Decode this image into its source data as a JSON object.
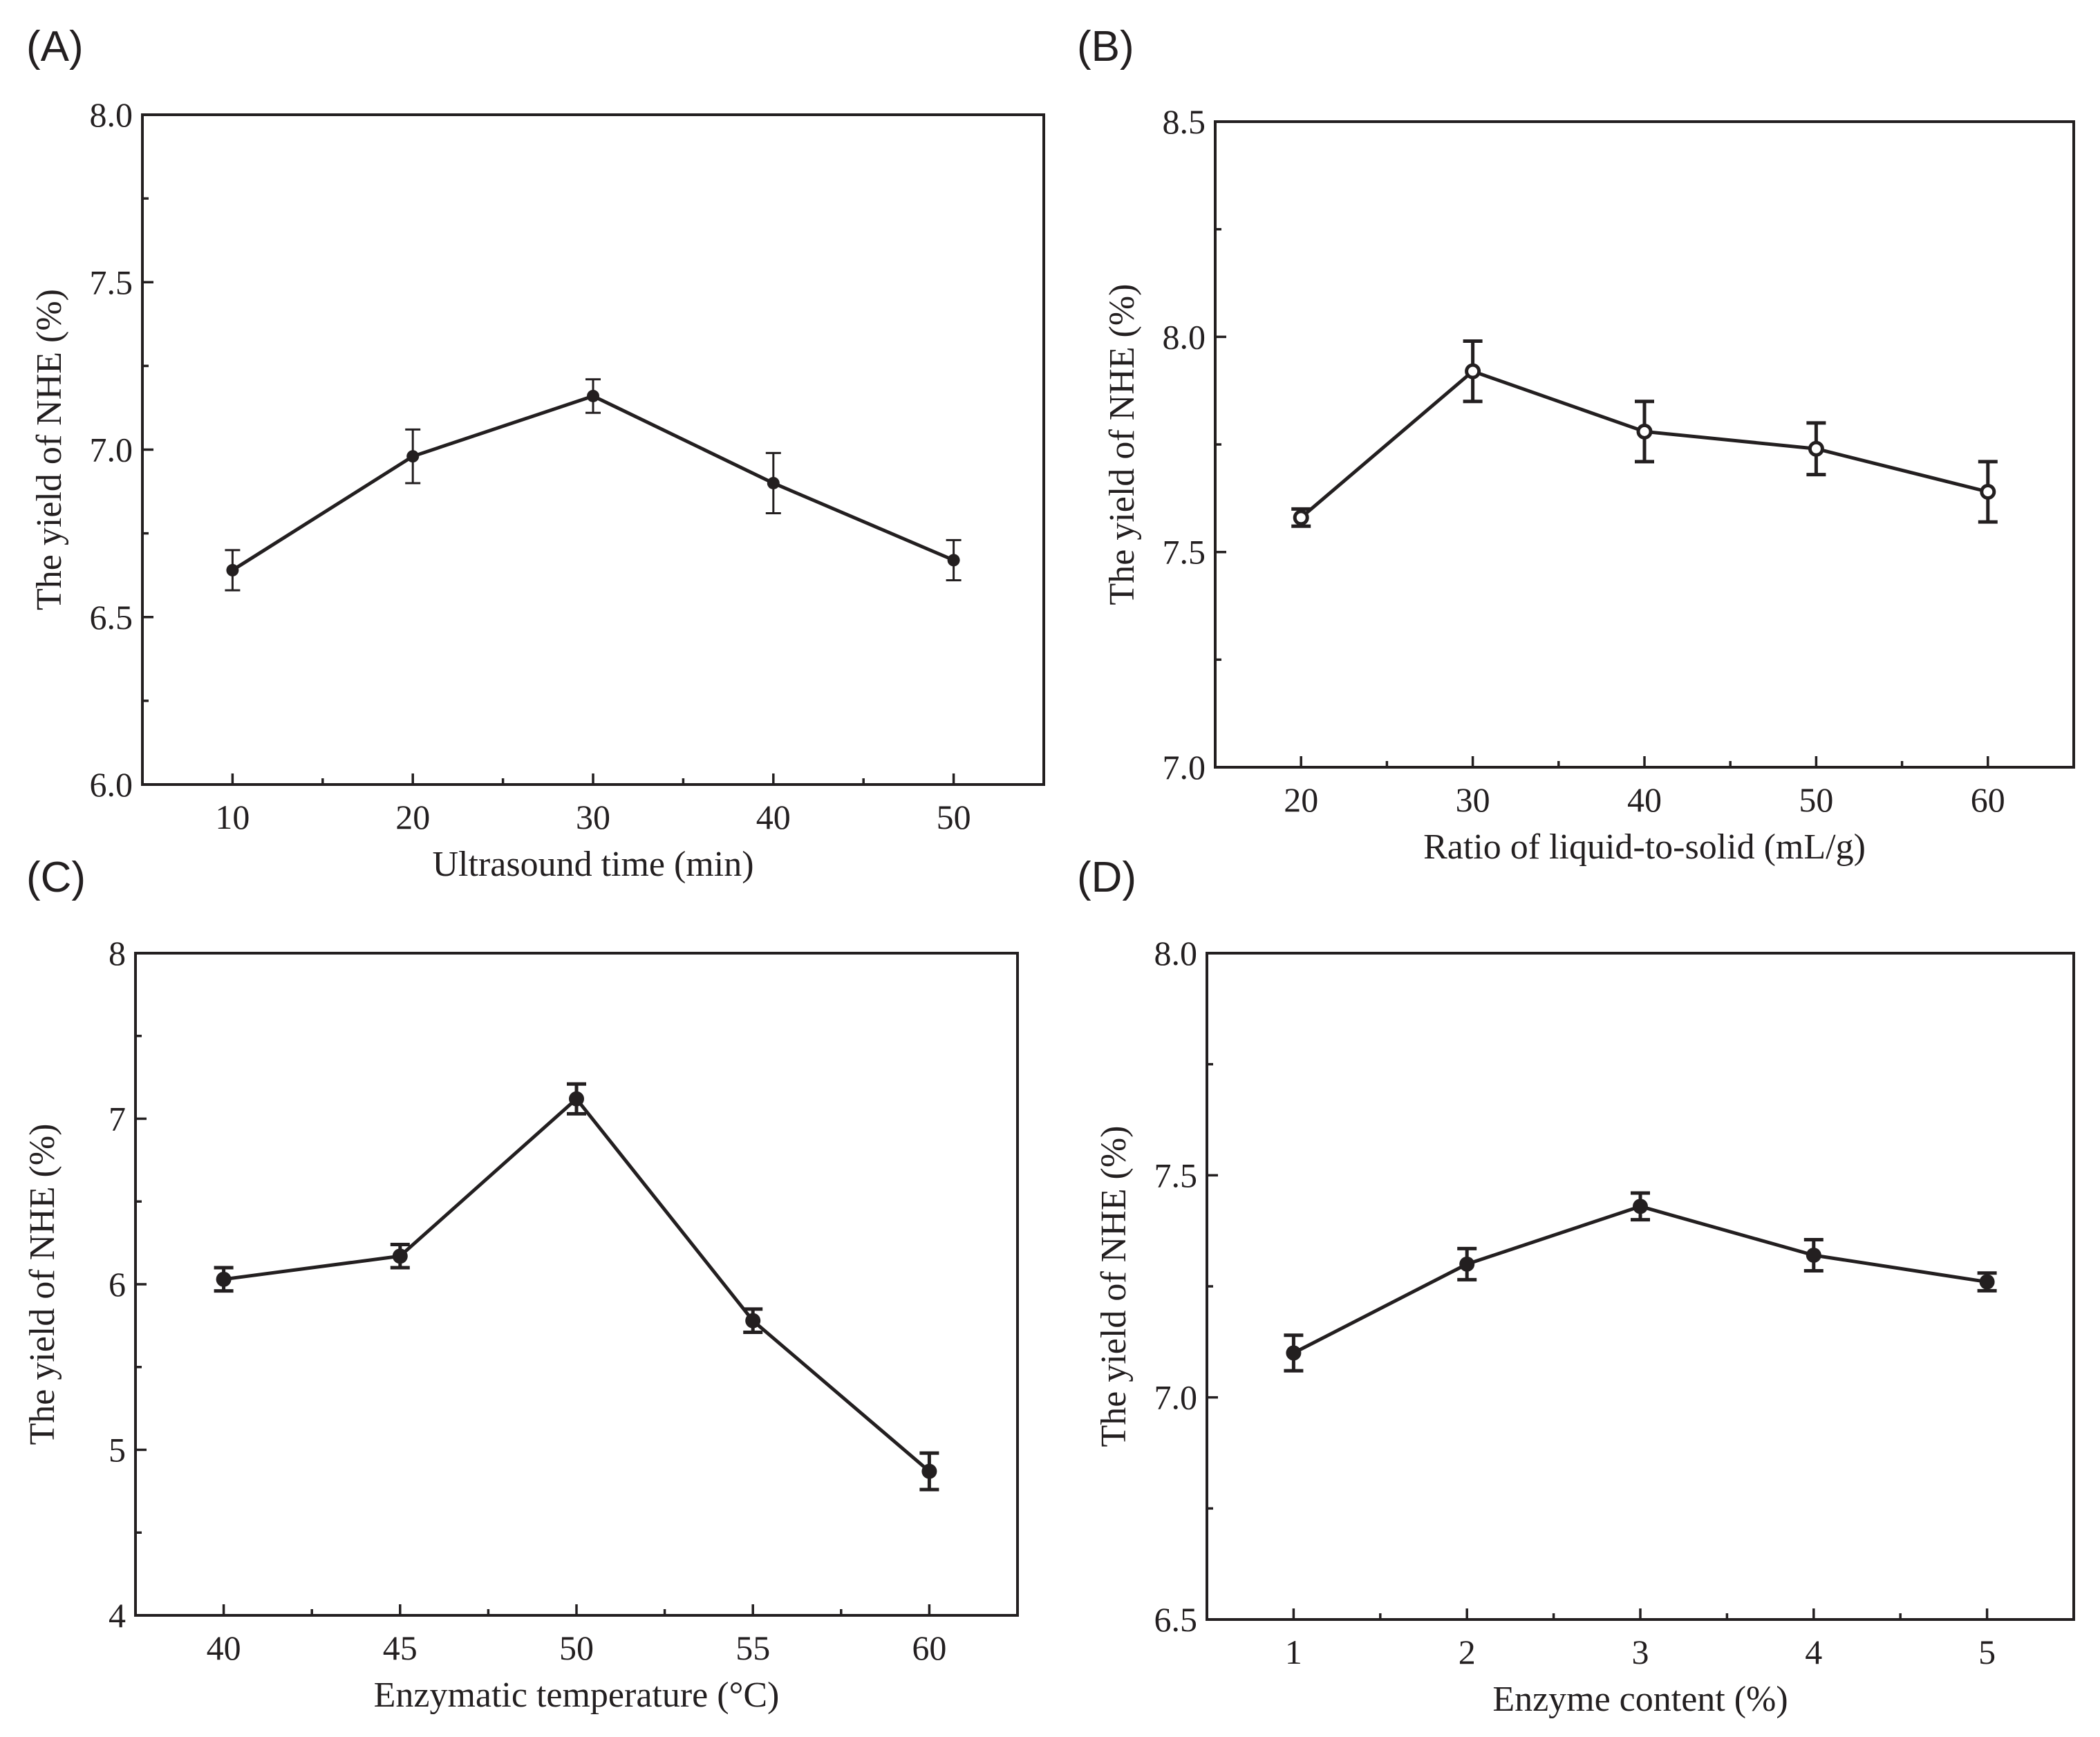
{
  "chart_data": [
    {
      "type": "line",
      "panel": "(A)",
      "xlabel": "Ultrasound time (min)",
      "ylabel": "The yield of NHE (%)",
      "x": [
        10,
        20,
        30,
        40,
        50
      ],
      "xticks": [
        "10",
        "20",
        "30",
        "40",
        "50"
      ],
      "yticks": [
        "6.0",
        "6.5",
        "7.0",
        "7.5",
        "8.0"
      ],
      "xlim": [
        5,
        55
      ],
      "ylim": [
        6.0,
        8.0
      ],
      "series": [
        {
          "values": [
            6.64,
            6.98,
            7.16,
            6.9,
            6.67
          ],
          "errors": [
            0.06,
            0.08,
            0.05,
            0.09,
            0.06
          ]
        }
      ],
      "marker": "filled",
      "grid": false
    },
    {
      "type": "line",
      "panel": "(B)",
      "xlabel": "Ratio of liquid-to-solid (mL/g)",
      "ylabel": "The yield of NHE (%)",
      "x": [
        20,
        30,
        40,
        50,
        60
      ],
      "xticks": [
        "20",
        "30",
        "40",
        "50",
        "60"
      ],
      "yticks": [
        "7.0",
        "7.5",
        "8.0",
        "8.5"
      ],
      "xlim": [
        15,
        65
      ],
      "ylim": [
        7.0,
        8.5
      ],
      "series": [
        {
          "values": [
            7.58,
            7.92,
            7.78,
            7.74,
            7.64
          ],
          "errors": [
            0.02,
            0.07,
            0.07,
            0.06,
            0.07
          ]
        }
      ],
      "marker": "open",
      "grid": false
    },
    {
      "type": "line",
      "panel": "(C)",
      "xlabel": "Enzymatic temperature (°C)",
      "ylabel": "The yield of NHE (%)",
      "x": [
        40,
        45,
        50,
        55,
        60
      ],
      "xticks": [
        "40",
        "45",
        "50",
        "55",
        "60"
      ],
      "yticks": [
        "4",
        "5",
        "6",
        "7",
        "8"
      ],
      "xlim": [
        37.5,
        62.5
      ],
      "ylim": [
        4,
        8
      ],
      "series": [
        {
          "values": [
            6.03,
            6.17,
            7.12,
            5.78,
            4.87
          ],
          "errors": [
            0.07,
            0.07,
            0.09,
            0.07,
            0.11
          ]
        }
      ],
      "marker": "filled",
      "grid": false
    },
    {
      "type": "line",
      "panel": "(D)",
      "xlabel": "Enzyme content (%)",
      "ylabel": "The yield of NHE (%)",
      "x": [
        1,
        2,
        3,
        4,
        5
      ],
      "xticks": [
        "1",
        "2",
        "3",
        "4",
        "5"
      ],
      "yticks": [
        "6.5",
        "7.0",
        "7.5",
        "8.0"
      ],
      "xlim": [
        0.5,
        5.5
      ],
      "ylim": [
        6.5,
        8.0
      ],
      "series": [
        {
          "values": [
            7.1,
            7.3,
            7.43,
            7.32,
            7.26
          ],
          "errors": [
            0.04,
            0.035,
            0.03,
            0.035,
            0.02
          ]
        }
      ],
      "marker": "filled",
      "grid": false
    }
  ]
}
